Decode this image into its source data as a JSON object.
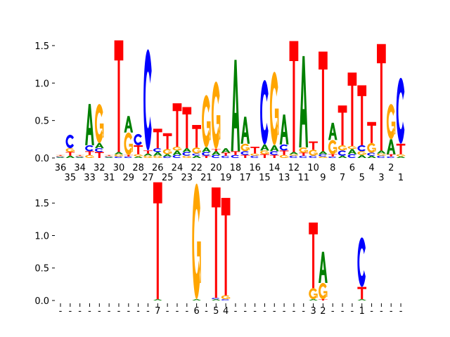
{
  "colors": {
    "A": "#008000",
    "C": "#0000ff",
    "G": "#ffa500",
    "T": "#ff0000"
  },
  "chart_data": [
    {
      "type": "sequence-logo",
      "title": "",
      "xlabel": "",
      "ylabel": "",
      "ylim": [
        0,
        1.64
      ],
      "yticks": [
        "0.0",
        "0.5",
        "1.0",
        "1.5"
      ],
      "ytick_values": [
        0,
        0.5,
        1.0,
        1.5
      ],
      "xtick_labels": [
        "36",
        "35",
        "34",
        "33",
        "32",
        "31",
        "30",
        "29",
        "28",
        "27",
        "26",
        "25",
        "24",
        "23",
        "22",
        "21",
        "20",
        "19",
        "18",
        "17",
        "16",
        "15",
        "14",
        "13",
        "12",
        "11",
        "10",
        "9",
        "8",
        "7",
        "6",
        "5",
        "4",
        "3",
        "2",
        "1"
      ],
      "stacks": [
        [
          [
            "A",
            0.01
          ],
          [
            "C",
            0.01
          ],
          [
            "G",
            0.01
          ],
          [
            "T",
            0.01
          ]
        ],
        [
          [
            "A",
            0.03
          ],
          [
            "T",
            0.05
          ],
          [
            "G",
            0.05
          ],
          [
            "C",
            0.18
          ]
        ],
        [
          [
            "A",
            0.01
          ],
          [
            "C",
            0.01
          ],
          [
            "G",
            0.01
          ],
          [
            "T",
            0.01
          ]
        ],
        [
          [
            "G",
            0.04
          ],
          [
            "T",
            0.05
          ],
          [
            "C",
            0.08
          ],
          [
            "A",
            0.55
          ]
        ],
        [
          [
            "T",
            0.08
          ],
          [
            "C",
            0.05
          ],
          [
            "A",
            0.07
          ],
          [
            "G",
            0.52
          ]
        ],
        [
          [
            "A",
            0.01
          ],
          [
            "C",
            0.01
          ],
          [
            "G",
            0.01
          ],
          [
            "T",
            0.01
          ]
        ],
        [
          [
            "C",
            0.02
          ],
          [
            "G",
            0.03
          ],
          [
            "A",
            0.03
          ],
          [
            "T",
            1.49
          ]
        ],
        [
          [
            "C",
            0.02
          ],
          [
            "T",
            0.02
          ],
          [
            "G",
            0.3
          ],
          [
            "A",
            0.22
          ]
        ],
        [
          [
            "A",
            0.02
          ],
          [
            "G",
            0.03
          ],
          [
            "T",
            0.12
          ],
          [
            "C",
            0.15
          ]
        ],
        [
          [
            "G",
            0.03
          ],
          [
            "A",
            0.03
          ],
          [
            "T",
            0.04
          ],
          [
            "C",
            1.35
          ]
        ],
        [
          [
            "G",
            0.03
          ],
          [
            "A",
            0.05
          ],
          [
            "C",
            0.05
          ],
          [
            "T",
            0.26
          ]
        ],
        [
          [
            "C",
            0.02
          ],
          [
            "A",
            0.03
          ],
          [
            "G",
            0.07
          ],
          [
            "T",
            0.21
          ]
        ],
        [
          [
            "C",
            0.04
          ],
          [
            "A",
            0.06
          ],
          [
            "G",
            0.05
          ],
          [
            "T",
            0.58
          ]
        ],
        [
          [
            "G",
            0.03
          ],
          [
            "C",
            0.05
          ],
          [
            "A",
            0.05
          ],
          [
            "T",
            0.55
          ]
        ],
        [
          [
            "A",
            0.03
          ],
          [
            "C",
            0.03
          ],
          [
            "G",
            0.08
          ],
          [
            "T",
            0.3
          ]
        ],
        [
          [
            "T",
            0.03
          ],
          [
            "C",
            0.05
          ],
          [
            "A",
            0.06
          ],
          [
            "G",
            0.7
          ]
        ],
        [
          [
            "C",
            0.04
          ],
          [
            "A",
            0.05
          ],
          [
            "T",
            0.03
          ],
          [
            "G",
            0.9
          ]
        ],
        [
          [
            "C",
            0.03
          ],
          [
            "T",
            0.04
          ],
          [
            "A",
            0.06
          ]
        ],
        [
          [
            "C",
            0.04
          ],
          [
            "T",
            0.05
          ],
          [
            "A",
            1.22
          ]
        ],
        [
          [
            "T",
            0.04
          ],
          [
            "C",
            0.05
          ],
          [
            "G",
            0.1
          ],
          [
            "A",
            0.36
          ]
        ],
        [
          [
            "C",
            0.03
          ],
          [
            "G",
            0.03
          ],
          [
            "T",
            0.09
          ]
        ],
        [
          [
            "T",
            0.05
          ],
          [
            "G",
            0.05
          ],
          [
            "A",
            0.08
          ],
          [
            "C",
            0.86
          ]
        ],
        [
          [
            "T",
            0.04
          ],
          [
            "C",
            0.05
          ],
          [
            "A",
            0.08
          ],
          [
            "G",
            0.98
          ]
        ],
        [
          [
            "G",
            0.04
          ],
          [
            "T",
            0.06
          ],
          [
            "C",
            0.08
          ],
          [
            "A",
            0.4
          ]
        ],
        [
          [
            "C",
            0.03
          ],
          [
            "G",
            0.02
          ],
          [
            "A",
            0.03
          ],
          [
            "T",
            1.48
          ]
        ],
        [
          [
            "C",
            0.03
          ],
          [
            "T",
            0.04
          ],
          [
            "G",
            0.07
          ],
          [
            "A",
            1.22
          ]
        ],
        [
          [
            "C",
            0.03
          ],
          [
            "G",
            0.08
          ],
          [
            "T",
            0.11
          ]
        ],
        [
          [
            "G",
            0.02
          ],
          [
            "C",
            0.03
          ],
          [
            "A",
            0.04
          ],
          [
            "T",
            1.33
          ]
        ],
        [
          [
            "C",
            0.02
          ],
          [
            "T",
            0.03
          ],
          [
            "G",
            0.19
          ],
          [
            "A",
            0.23
          ]
        ],
        [
          [
            "A",
            0.03
          ],
          [
            "C",
            0.07
          ],
          [
            "G",
            0.07
          ],
          [
            "T",
            0.53
          ]
        ],
        [
          [
            "C",
            0.05
          ],
          [
            "A",
            0.07
          ],
          [
            "G",
            0.04
          ],
          [
            "T",
            0.98
          ]
        ],
        [
          [
            "A",
            0.04
          ],
          [
            "G",
            0.05
          ],
          [
            "C",
            0.08
          ],
          [
            "T",
            0.8
          ]
        ],
        [
          [
            "A",
            0.03
          ],
          [
            "C",
            0.04
          ],
          [
            "G",
            0.13
          ],
          [
            "T",
            0.28
          ]
        ],
        [
          [
            "C",
            0.03
          ],
          [
            "G",
            0.03
          ],
          [
            "A",
            0.04
          ],
          [
            "T",
            1.42
          ]
        ],
        [
          [
            "C",
            0.02
          ],
          [
            "T",
            0.03
          ],
          [
            "A",
            0.2
          ],
          [
            "G",
            0.47
          ]
        ],
        [
          [
            "A",
            0.02
          ],
          [
            "G",
            0.03
          ],
          [
            "T",
            0.14
          ],
          [
            "C",
            0.88
          ]
        ]
      ]
    },
    {
      "type": "sequence-logo",
      "title": "",
      "xlabel": "",
      "ylabel": "",
      "ylim": [
        0,
        1.87
      ],
      "yticks": [
        "0.0",
        "0.5",
        "1.0",
        "1.5"
      ],
      "ytick_values": [
        0,
        0.5,
        1.0,
        1.5
      ],
      "xtick_labels": [
        "-",
        "-",
        "-",
        "-",
        "-",
        "-",
        "-",
        "-",
        "-",
        "-",
        "7",
        "-",
        "-",
        "-",
        "6",
        "-",
        "5",
        "4",
        "-",
        "-",
        "-",
        "-",
        "-",
        "-",
        "-",
        "-",
        "3",
        "2",
        "-",
        "-",
        "-",
        "1",
        "-",
        "-",
        "-",
        "-"
      ],
      "stacks": [
        [],
        [],
        [],
        [],
        [],
        [],
        [],
        [],
        [],
        [],
        [
          [
            "A",
            0.02
          ],
          [
            "T",
            1.8
          ]
        ],
        [],
        [],
        [],
        [
          [
            "A",
            0.02
          ],
          [
            "G",
            1.78
          ]
        ],
        [],
        [
          [
            "A",
            0.02
          ],
          [
            "C",
            0.02
          ],
          [
            "T",
            1.7
          ]
        ],
        [
          [
            "C",
            0.02
          ],
          [
            "G",
            0.06
          ],
          [
            "T",
            1.5
          ]
        ],
        [],
        [],
        [],
        [],
        [],
        [],
        [],
        [],
        [
          [
            "A",
            0.02
          ],
          [
            "G",
            0.17
          ],
          [
            "T",
            1.01
          ]
        ],
        [
          [
            "T",
            0.02
          ],
          [
            "G",
            0.25
          ],
          [
            "A",
            0.48
          ]
        ],
        [],
        [],
        [],
        [
          [
            "A",
            0.02
          ],
          [
            "T",
            0.19
          ],
          [
            "C",
            0.76
          ]
        ],
        [],
        [],
        [],
        []
      ]
    }
  ]
}
